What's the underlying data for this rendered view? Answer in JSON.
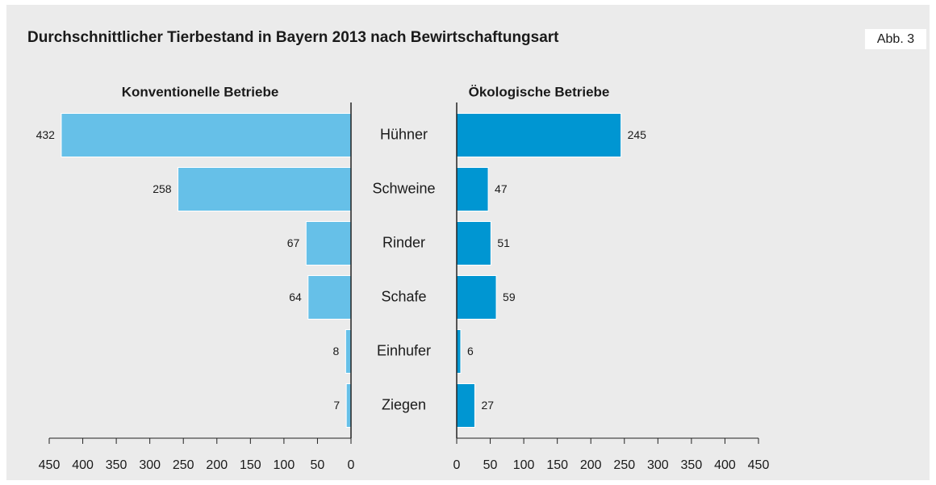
{
  "chart_data": {
    "type": "bar",
    "title": "Durchschnittlicher Tierbestand in Bayern 2013 nach Bewirtschaftungsart",
    "label": "Abb. 3",
    "categories": [
      "Hühner",
      "Schweine",
      "Rinder",
      "Schafe",
      "Einhufer",
      "Ziegen"
    ],
    "series": [
      {
        "name": "Konventionelle Betriebe",
        "color": "#66c0e8",
        "values": [
          432,
          258,
          67,
          64,
          8,
          7
        ]
      },
      {
        "name": "Ökologische Betriebe",
        "color": "#0096d2",
        "values": [
          245,
          47,
          51,
          59,
          6,
          27
        ]
      }
    ],
    "xlim": [
      0,
      450
    ],
    "xticks": [
      0,
      50,
      100,
      150,
      200,
      250,
      300,
      350,
      400,
      450
    ]
  }
}
